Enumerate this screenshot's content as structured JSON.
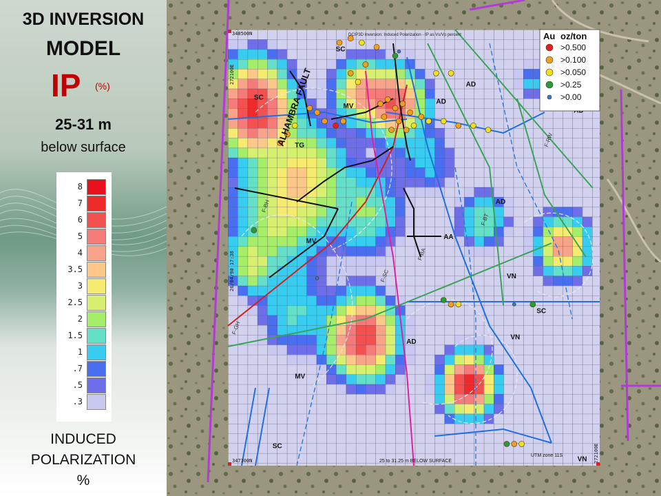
{
  "title": {
    "line1": "3D INVERSION",
    "line2": "MODEL",
    "ip": "IP",
    "ip_unit": "(%)",
    "depth": "25-31 m",
    "depth_sub": "below surface"
  },
  "ip_legend": {
    "labels": [
      "8",
      "7",
      "6",
      "5",
      "4",
      "3.5",
      "3",
      "2.5",
      "2",
      "1.5",
      "1",
      ".7",
      ".5",
      ".3"
    ],
    "colors": [
      "#e8101a",
      "#ee2a2a",
      "#f35050",
      "#f57a7a",
      "#f7a48a",
      "#fcc88a",
      "#f6ea70",
      "#d8f070",
      "#a6ee6a",
      "#64e0c8",
      "#38cdf0",
      "#4a6ef0",
      "#6e6ee8",
      "#c8c8f0"
    ],
    "caption_line1": "INDUCED",
    "caption_line2": "POLARIZATION",
    "caption_line3": "%"
  },
  "au_legend": {
    "header_au": "Au",
    "header_unit": "oz/ton",
    "items": [
      {
        "label": ">0.500",
        "color": "#e02020"
      },
      {
        "label": ">0.100",
        "color": "#f0a020"
      },
      {
        "label": ">0.050",
        "color": "#f0e020"
      },
      {
        "label": ">0.25",
        "color": "#2a9a3a"
      },
      {
        "label": ">0.00",
        "color": "#2a7ae0"
      }
    ]
  },
  "map_labels": {
    "top_left_coord": "348500N",
    "plot_header": "DCIP3D Inversion: Induced Polarization - IP as Vs/Vp percent",
    "left_coord": "272100E",
    "right_coord": "272100E",
    "left_mid_coord": "26/04/90 17:38",
    "bottom_left_coord": "347300N",
    "bottom_caption": "25 to 31.25 m BELOW SURFACE",
    "utm": "UTM zone 11S",
    "fault": "ALHAMBRA FAULT",
    "geology": [
      {
        "text": "SC",
        "gx": 0.29,
        "gy": 0.05
      },
      {
        "text": "SC",
        "gx": 0.07,
        "gy": 0.16
      },
      {
        "text": "MV",
        "gx": 0.31,
        "gy": 0.18
      },
      {
        "text": "AD",
        "gx": 0.56,
        "gy": 0.17
      },
      {
        "text": "AD",
        "gx": 0.64,
        "gy": 0.13
      },
      {
        "text": "AD",
        "gx": 0.93,
        "gy": 0.19
      },
      {
        "text": "TG",
        "gx": 0.18,
        "gy": 0.27
      },
      {
        "text": "AD",
        "gx": 0.72,
        "gy": 0.4
      },
      {
        "text": "AA",
        "gx": 0.58,
        "gy": 0.48
      },
      {
        "text": "MV",
        "gx": 0.21,
        "gy": 0.49
      },
      {
        "text": "VN",
        "gx": 0.75,
        "gy": 0.57
      },
      {
        "text": "SC",
        "gx": 0.83,
        "gy": 0.65
      },
      {
        "text": "VN",
        "gx": 0.76,
        "gy": 0.71
      },
      {
        "text": "AD",
        "gx": 0.48,
        "gy": 0.72
      },
      {
        "text": "MV",
        "gx": 0.18,
        "gy": 0.8
      },
      {
        "text": "SC",
        "gx": 0.12,
        "gy": 0.96
      },
      {
        "text": "VN",
        "gx": 0.94,
        "gy": 0.99
      }
    ],
    "faults": [
      {
        "text": "F-GH",
        "gx": 0.02,
        "gy": 0.7
      },
      {
        "text": "F-BH",
        "gx": 0.1,
        "gy": 0.42
      },
      {
        "text": "F-SC",
        "gx": 0.42,
        "gy": 0.58
      },
      {
        "text": "F-BA",
        "gx": 0.52,
        "gy": 0.53
      },
      {
        "text": "F-BT",
        "gx": 0.69,
        "gy": 0.45
      },
      {
        "text": "F-RW",
        "gx": 0.86,
        "gy": 0.27
      }
    ]
  }
}
